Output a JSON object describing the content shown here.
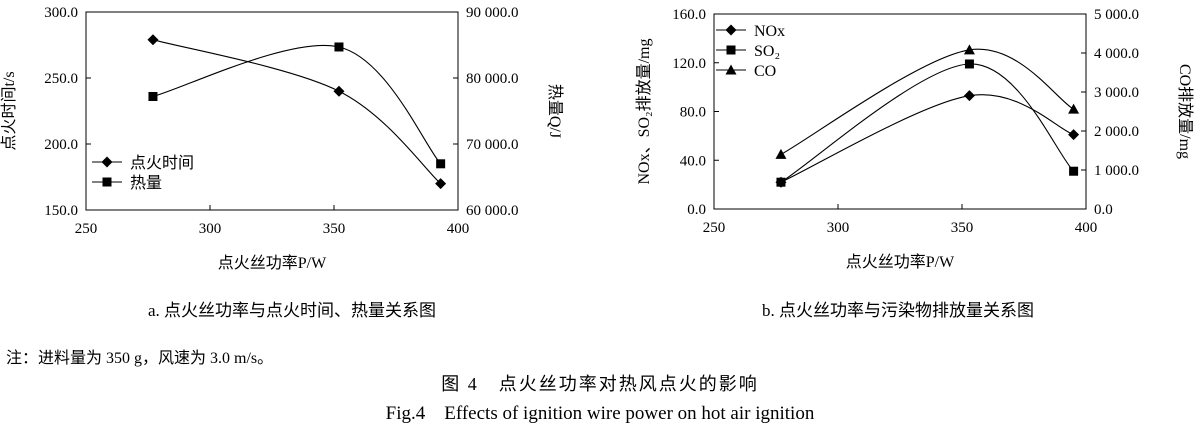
{
  "chart_data": [
    {
      "type": "line",
      "panel": "a",
      "caption": "a. 点火丝功率与点火时间、热量关系图",
      "xlabel": "点火丝功率P/W",
      "ylabel_left": "点火时间t/s",
      "ylabel_right": "热量Q/J",
      "xlim": [
        250,
        400
      ],
      "xticks": [
        "250",
        "300",
        "350",
        "400"
      ],
      "ylim_left": [
        150,
        300
      ],
      "yticks_left": [
        "150.0",
        "200.0",
        "250.0",
        "300.0"
      ],
      "ylim_right": [
        60000,
        90000
      ],
      "yticks_right": [
        "60 000.0",
        "70 000.0",
        "80 000.0",
        "90 000.0"
      ],
      "legend_position": "lower-left",
      "series": [
        {
          "name": "点火时间",
          "axis": "left",
          "marker": "diamond",
          "x": [
            277,
            352,
            393
          ],
          "y": [
            279,
            240,
            170
          ]
        },
        {
          "name": "热量",
          "axis": "right",
          "marker": "square",
          "x": [
            277,
            352,
            393
          ],
          "y": [
            77200,
            84700,
            67000
          ]
        }
      ]
    },
    {
      "type": "line",
      "panel": "b",
      "caption": "b. 点火丝功率与污染物排放量关系图",
      "xlabel": "点火丝功率P/W",
      "ylabel_left": "NOx、SO₂排放量/mg",
      "ylabel_right": "CO排放量/mg",
      "xlim": [
        250,
        400
      ],
      "xticks": [
        "250",
        "300",
        "350",
        "400"
      ],
      "ylim_left": [
        0,
        160
      ],
      "yticks_left": [
        "0.0",
        "40.0",
        "80.0",
        "120.0",
        "160.0"
      ],
      "ylim_right": [
        0,
        5000
      ],
      "yticks_right": [
        "0.0",
        "1 000.0",
        "2 000.0",
        "3 000.0",
        "4 000.0",
        "5 000.0"
      ],
      "legend_position": "top-left",
      "series": [
        {
          "name": "NOx",
          "axis": "left",
          "marker": "diamond",
          "x": [
            277,
            353,
            395
          ],
          "y": [
            22,
            93,
            61
          ]
        },
        {
          "name": "SO₂",
          "axis": "left",
          "marker": "square",
          "x": [
            277,
            353,
            395
          ],
          "y": [
            22,
            119,
            31
          ]
        },
        {
          "name": "CO",
          "axis": "right",
          "marker": "triangle",
          "x": [
            277,
            353,
            395
          ],
          "y": [
            1400,
            4080,
            2560
          ]
        }
      ]
    }
  ],
  "note": "注：进料量为 350 g，风速为 3.0 m/s。",
  "figure_title_zh": "图 4　点火丝功率对热风点火的影响",
  "figure_title_en": "Fig.4　Effects of ignition wire power on hot air ignition"
}
